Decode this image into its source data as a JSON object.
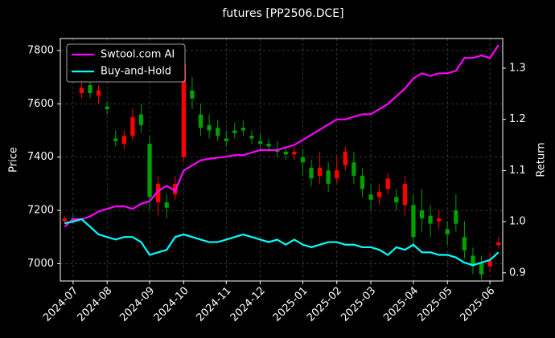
{
  "chart_data": {
    "type": "candlestick",
    "title": "futures [PP2506.DCE]",
    "y_label": "Price",
    "y2_label": "Return",
    "categories": [
      null,
      "2024-07",
      null,
      null,
      null,
      "2024-08",
      null,
      null,
      null,
      null,
      "2024-09",
      null,
      null,
      null,
      "2024-10",
      null,
      null,
      null,
      null,
      "2024-11",
      null,
      null,
      null,
      "2024-12",
      null,
      null,
      null,
      null,
      "2025-01",
      null,
      null,
      null,
      "2025-02",
      null,
      null,
      null,
      "2025-03",
      null,
      null,
      null,
      null,
      "2025-04",
      null,
      null,
      null,
      "2025-05",
      null,
      null,
      null,
      null,
      "2025-06",
      null
    ],
    "candles": {
      "up_color": "#ff0000",
      "down_color": "#00a000",
      "open": [
        7160,
        7170,
        7640,
        7670,
        7630,
        7590,
        7470,
        7450,
        7480,
        7560,
        7450,
        7230,
        7230,
        7260,
        7400,
        7650,
        7560,
        7520,
        7510,
        7470,
        7500,
        7510,
        7480,
        7460,
        7450,
        7430,
        7420,
        7410,
        7400,
        7360,
        7330,
        7350,
        7320,
        7370,
        7380,
        7330,
        7260,
        7250,
        7280,
        7250,
        7220,
        7220,
        7200,
        7180,
        7160,
        7130,
        7200,
        7100,
        7030,
        7000,
        6990,
        7070
      ],
      "close": [
        7170,
        7160,
        7660,
        7640,
        7650,
        7580,
        7460,
        7480,
        7550,
        7520,
        7250,
        7300,
        7210,
        7300,
        7750,
        7620,
        7510,
        7500,
        7480,
        7460,
        7490,
        7500,
        7470,
        7450,
        7440,
        7420,
        7410,
        7420,
        7380,
        7320,
        7360,
        7300,
        7350,
        7420,
        7330,
        7280,
        7240,
        7270,
        7320,
        7230,
        7300,
        7100,
        7170,
        7150,
        7170,
        7110,
        7150,
        7050,
        6990,
        6960,
        7010,
        7080
      ],
      "high": [
        7180,
        7185,
        7700,
        7690,
        7670,
        7610,
        7500,
        7500,
        7580,
        7600,
        7480,
        7330,
        7260,
        7330,
        7800,
        7700,
        7600,
        7560,
        7540,
        7500,
        7530,
        7540,
        7500,
        7490,
        7470,
        7460,
        7440,
        7440,
        7430,
        7390,
        7420,
        7380,
        7400,
        7440,
        7420,
        7360,
        7300,
        7300,
        7340,
        7280,
        7330,
        7260,
        7280,
        7220,
        7200,
        7160,
        7260,
        7160,
        7060,
        7030,
        7040,
        7100
      ],
      "low": [
        7150,
        7150,
        7620,
        7620,
        7600,
        7560,
        7440,
        7430,
        7460,
        7490,
        7200,
        7180,
        7170,
        7240,
        7380,
        7580,
        7480,
        7470,
        7460,
        7440,
        7470,
        7480,
        7450,
        7430,
        7420,
        7400,
        7390,
        7390,
        7330,
        7290,
        7300,
        7270,
        7300,
        7350,
        7300,
        7250,
        7200,
        7220,
        7260,
        7200,
        7180,
        7060,
        7120,
        7100,
        7130,
        7070,
        7120,
        7020,
        6960,
        6940,
        6970,
        7060
      ]
    },
    "series": [
      {
        "name": "Swtool.com AI",
        "color": "#ff00ff",
        "axis": "y2",
        "values": [
          0.99,
          1.005,
          1.005,
          1.01,
          1.02,
          1.025,
          1.03,
          1.03,
          1.025,
          1.035,
          1.04,
          1.06,
          1.07,
          1.06,
          1.1,
          1.11,
          1.12,
          1.123,
          1.125,
          1.127,
          1.13,
          1.13,
          1.135,
          1.14,
          1.14,
          1.14,
          1.145,
          1.15,
          1.16,
          1.17,
          1.18,
          1.19,
          1.2,
          1.2,
          1.205,
          1.21,
          1.21,
          1.22,
          1.23,
          1.245,
          1.26,
          1.28,
          1.29,
          1.285,
          1.29,
          1.29,
          1.295,
          1.32,
          1.32,
          1.325,
          1.32,
          1.345
        ]
      },
      {
        "name": "Buy-and-Hold",
        "color": "#00ffff",
        "axis": "y2",
        "values": [
          0.997,
          1.0,
          1.005,
          0.99,
          0.975,
          0.97,
          0.965,
          0.97,
          0.97,
          0.96,
          0.935,
          0.94,
          0.945,
          0.97,
          0.975,
          0.97,
          0.965,
          0.96,
          0.96,
          0.965,
          0.97,
          0.975,
          0.97,
          0.965,
          0.96,
          0.965,
          0.955,
          0.965,
          0.955,
          0.95,
          0.955,
          0.96,
          0.96,
          0.955,
          0.955,
          0.95,
          0.95,
          0.945,
          0.935,
          0.95,
          0.945,
          0.955,
          0.94,
          0.94,
          0.935,
          0.935,
          0.93,
          0.92,
          0.915,
          0.92,
          0.925,
          0.94
        ]
      }
    ],
    "ylim": [
      6935,
      7845
    ],
    "yticks": [
      7000,
      7200,
      7400,
      7600,
      7800
    ],
    "y2lim": [
      0.884,
      1.358
    ],
    "y2ticks": [
      0.9,
      {
        "value": 1,
        "label": "1.0"
      },
      1.1,
      1.2,
      1.3
    ],
    "grid": true,
    "legend": "upper left"
  }
}
